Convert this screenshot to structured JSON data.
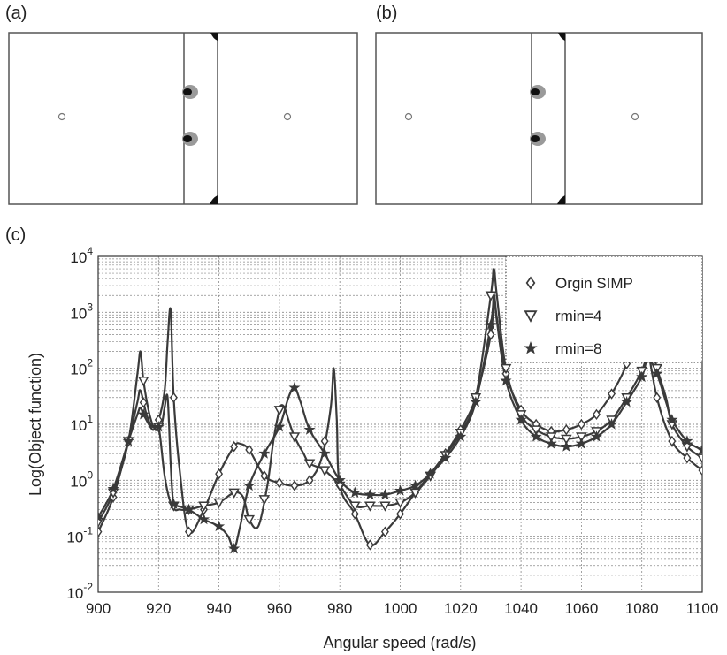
{
  "panels": {
    "a_label": "(a)",
    "b_label": "(b)",
    "c_label": "(c)"
  },
  "chart_data": {
    "type": "line",
    "xlabel": "Angular speed (rad/s)",
    "ylabel": "Log(Object function)",
    "xlim": [
      900,
      1100
    ],
    "ylim": [
      0.01,
      10000
    ],
    "yscale": "log",
    "grid": true,
    "legend_position": "top-right",
    "x_ticks": [
      900,
      920,
      940,
      960,
      980,
      1000,
      1020,
      1040,
      1060,
      1080,
      1100
    ],
    "y_ticks": [
      {
        "value": 0.01,
        "base": "10",
        "exp": "-2"
      },
      {
        "value": 0.1,
        "base": "10",
        "exp": "-1"
      },
      {
        "value": 1,
        "base": "10",
        "exp": "0"
      },
      {
        "value": 10,
        "base": "10",
        "exp": "1"
      },
      {
        "value": 100,
        "base": "10",
        "exp": "2"
      },
      {
        "value": 1000,
        "base": "10",
        "exp": "3"
      },
      {
        "value": 10000,
        "base": "10",
        "exp": "4"
      }
    ],
    "series": [
      {
        "name": "Orgin SIMP",
        "marker": "diamond",
        "x": [
          900,
          905,
          910,
          913,
          914,
          916,
          918,
          920,
          922,
          923,
          924,
          925,
          927,
          930,
          935,
          940,
          945,
          947,
          950,
          955,
          960,
          965,
          970,
          974,
          977,
          978,
          979,
          980,
          985,
          990,
          995,
          1000,
          1005,
          1010,
          1015,
          1020,
          1025,
          1030,
          1031,
          1032,
          1035,
          1040,
          1045,
          1050,
          1055,
          1060,
          1065,
          1070,
          1075,
          1079,
          1080,
          1081,
          1085,
          1090,
          1095,
          1100
        ],
        "y": [
          0.12,
          0.5,
          5,
          25,
          40,
          15,
          9,
          12,
          40,
          300,
          1100,
          30,
          1.5,
          0.12,
          0.3,
          1.3,
          4,
          4.5,
          3.5,
          1.2,
          0.9,
          0.8,
          1.0,
          2.5,
          20,
          100,
          12,
          0.8,
          0.25,
          0.07,
          0.12,
          0.25,
          0.6,
          1.3,
          3,
          8,
          30,
          400,
          2000,
          800,
          80,
          18,
          10,
          7.5,
          8,
          10,
          15,
          35,
          120,
          700,
          1200,
          500,
          30,
          5,
          2.5,
          1.5
        ],
        "marker_x": [
          900,
          905,
          910,
          915,
          920,
          925,
          930,
          935,
          940,
          945,
          950,
          955,
          960,
          965,
          970,
          975,
          980,
          985,
          990,
          995,
          1000,
          1005,
          1010,
          1015,
          1020,
          1025,
          1030,
          1035,
          1040,
          1045,
          1050,
          1055,
          1060,
          1065,
          1070,
          1075,
          1080,
          1085,
          1090,
          1095,
          1100
        ]
      },
      {
        "name": "rmin=4",
        "marker": "triangle-down",
        "x": [
          900,
          905,
          910,
          913,
          914,
          915,
          917,
          919,
          921,
          922,
          923,
          924,
          925,
          927,
          930,
          935,
          940,
          945,
          948,
          950,
          953,
          956,
          958,
          960,
          961,
          962,
          963,
          965,
          968,
          970,
          975,
          980,
          985,
          990,
          995,
          1000,
          1005,
          1010,
          1015,
          1020,
          1025,
          1030,
          1031,
          1032,
          1035,
          1040,
          1045,
          1050,
          1055,
          1060,
          1065,
          1070,
          1075,
          1080,
          1083,
          1085,
          1088,
          1090,
          1095,
          1100
        ],
        "y": [
          0.18,
          0.6,
          5,
          80,
          200,
          60,
          15,
          8,
          10,
          20,
          30,
          2,
          0.35,
          0.3,
          0.3,
          0.35,
          0.4,
          0.6,
          0.5,
          0.2,
          0.15,
          0.8,
          5,
          18,
          22,
          18,
          12,
          6,
          3,
          2,
          1.5,
          0.8,
          0.35,
          0.35,
          0.35,
          0.4,
          0.6,
          1.2,
          2.8,
          7,
          30,
          2000,
          6000,
          2000,
          100,
          15,
          8,
          6,
          5.5,
          6,
          7.5,
          12,
          30,
          90,
          250,
          100,
          30,
          10,
          4,
          2.5
        ],
        "marker_x": [
          900,
          905,
          910,
          915,
          920,
          925,
          930,
          935,
          940,
          945,
          950,
          955,
          960,
          965,
          970,
          975,
          980,
          985,
          990,
          995,
          1000,
          1005,
          1010,
          1015,
          1020,
          1025,
          1030,
          1035,
          1040,
          1045,
          1050,
          1055,
          1060,
          1065,
          1070,
          1075,
          1080,
          1085,
          1090,
          1095,
          1100
        ]
      },
      {
        "name": "rmin=8",
        "marker": "star",
        "x": [
          900,
          905,
          910,
          913,
          914,
          915,
          918,
          920,
          922,
          924,
          926,
          930,
          935,
          940,
          943,
          945,
          947,
          950,
          955,
          960,
          963,
          965,
          967,
          970,
          975,
          980,
          985,
          990,
          995,
          1000,
          1005,
          1010,
          1015,
          1020,
          1025,
          1030,
          1031,
          1032,
          1035,
          1040,
          1045,
          1050,
          1055,
          1060,
          1065,
          1070,
          1075,
          1080,
          1082,
          1085,
          1088,
          1090,
          1095,
          1100
        ],
        "y": [
          0.22,
          0.7,
          5,
          15,
          20,
          15,
          8,
          9,
          1.2,
          0.4,
          0.35,
          0.3,
          0.2,
          0.15,
          0.1,
          0.06,
          0.15,
          0.8,
          3,
          9,
          30,
          45,
          25,
          8,
          3,
          1,
          0.6,
          0.55,
          0.55,
          0.65,
          0.8,
          1.3,
          2.5,
          6,
          25,
          600,
          1800,
          700,
          60,
          12,
          6,
          4.5,
          4,
          4.5,
          6,
          10,
          25,
          70,
          150,
          80,
          25,
          12,
          5,
          3.5
        ],
        "marker_x": [
          900,
          905,
          910,
          915,
          920,
          925,
          930,
          935,
          940,
          945,
          950,
          955,
          960,
          965,
          970,
          975,
          980,
          985,
          990,
          995,
          1000,
          1005,
          1010,
          1015,
          1020,
          1025,
          1030,
          1035,
          1040,
          1045,
          1050,
          1055,
          1060,
          1065,
          1070,
          1075,
          1080,
          1085,
          1090,
          1095,
          1100
        ]
      }
    ]
  },
  "colors": {
    "line": "#3a3a3a",
    "grid": "#8a8a8a",
    "panel_border": "#555555",
    "blob_dark": "#111111",
    "blob_gray": "#9a9a9a"
  }
}
